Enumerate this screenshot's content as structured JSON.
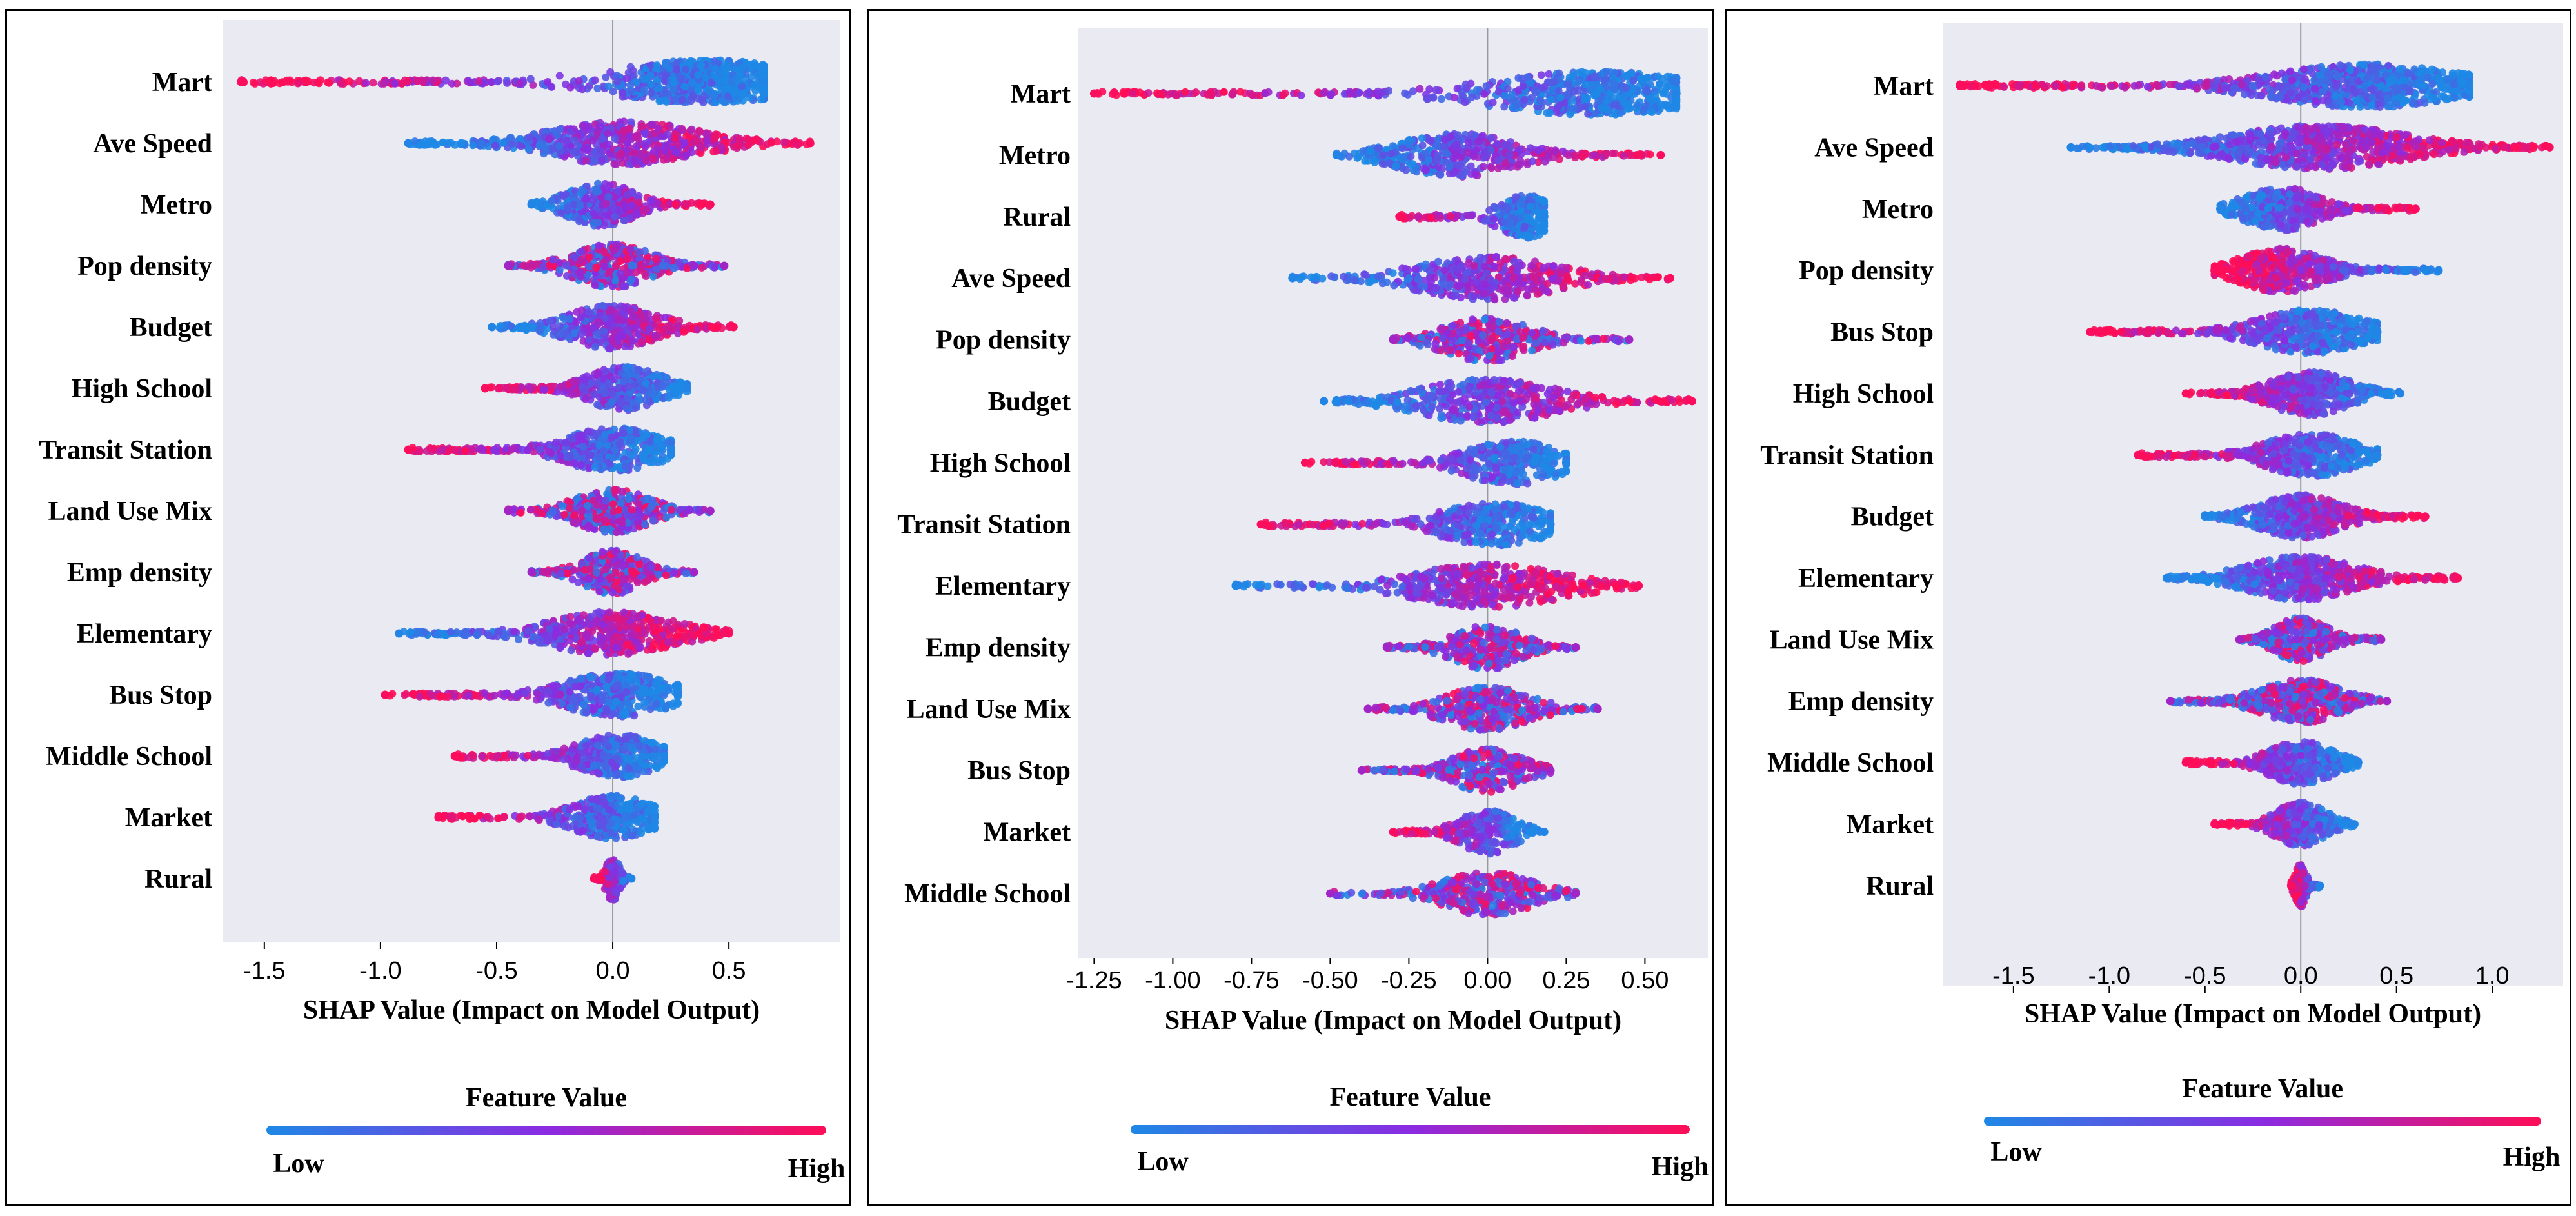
{
  "colors": {
    "plot_bg": "#eaeaf2",
    "low": "#1e88e5",
    "mid": "#8a2be2",
    "high": "#ff0d57",
    "zero_line": "#999999"
  },
  "chart_data": [
    {
      "type": "scatter",
      "subtype": "beeswarm",
      "xlabel": "SHAP Value (Impact on Model Output)",
      "xlim": [
        -1.68,
        0.98
      ],
      "xticks": [
        -1.5,
        -1.0,
        -0.5,
        0.0,
        0.5
      ],
      "xtick_labels": [
        "-1.5",
        "-1.0",
        "-0.5",
        "0.0",
        "0.5"
      ],
      "colorbar": {
        "title": "Feature Value",
        "low_label": "Low",
        "high_label": "High"
      },
      "features": [
        {
          "name": "Mart",
          "min": -1.6,
          "max": 0.65,
          "center": 0.4,
          "low_side": "right"
        },
        {
          "name": "Ave Speed",
          "min": -0.88,
          "max": 0.85,
          "center": 0.05,
          "low_side": "left"
        },
        {
          "name": "Metro",
          "min": -0.35,
          "max": 0.42,
          "center": -0.05,
          "low_side": "left"
        },
        {
          "name": "Pop density",
          "min": -0.45,
          "max": 0.48,
          "center": 0.0,
          "low_side": "mixed"
        },
        {
          "name": "Budget",
          "min": -0.52,
          "max": 0.52,
          "center": 0.0,
          "low_side": "left"
        },
        {
          "name": "High School",
          "min": -0.55,
          "max": 0.32,
          "center": 0.05,
          "low_side": "right"
        },
        {
          "name": "Transit Station",
          "min": -0.88,
          "max": 0.25,
          "center": 0.0,
          "low_side": "right"
        },
        {
          "name": "Land Use Mix",
          "min": -0.45,
          "max": 0.42,
          "center": 0.0,
          "low_side": "mixed"
        },
        {
          "name": "Emp density",
          "min": -0.35,
          "max": 0.35,
          "center": 0.0,
          "low_side": "mixed"
        },
        {
          "name": "Elementary",
          "min": -0.92,
          "max": 0.5,
          "center": 0.0,
          "low_side": "left"
        },
        {
          "name": "Bus Stop",
          "min": -0.98,
          "max": 0.28,
          "center": 0.02,
          "low_side": "right"
        },
        {
          "name": "Middle School",
          "min": -0.68,
          "max": 0.22,
          "center": 0.02,
          "low_side": "right"
        },
        {
          "name": "Market",
          "min": -0.75,
          "max": 0.18,
          "center": 0.0,
          "low_side": "right"
        },
        {
          "name": "Rural",
          "min": -0.08,
          "max": 0.08,
          "center": 0.0,
          "low_side": "right"
        }
      ]
    },
    {
      "type": "scatter",
      "subtype": "beeswarm",
      "xlabel": "SHAP Value (Impact on Model Output)",
      "xlim": [
        -1.3,
        0.7
      ],
      "xticks": [
        -1.25,
        -1.0,
        -0.75,
        -0.5,
        -0.25,
        0.0,
        0.25,
        0.5
      ],
      "xtick_labels": [
        "-1.25",
        "-1.00",
        "-0.75",
        "-0.50",
        "-0.25",
        "0.00",
        "0.25",
        "0.50"
      ],
      "colorbar": {
        "title": "Feature Value",
        "low_label": "Low",
        "high_label": "High"
      },
      "features": [
        {
          "name": "Mart",
          "min": -1.25,
          "max": 0.6,
          "center": 0.35,
          "low_side": "right"
        },
        {
          "name": "Metro",
          "min": -0.48,
          "max": 0.55,
          "center": -0.1,
          "low_side": "left"
        },
        {
          "name": "Rural",
          "min": -0.28,
          "max": 0.18,
          "center": 0.12,
          "low_side": "right"
        },
        {
          "name": "Ave Speed",
          "min": -0.62,
          "max": 0.58,
          "center": 0.0,
          "low_side": "left"
        },
        {
          "name": "Pop density",
          "min": -0.3,
          "max": 0.45,
          "center": 0.0,
          "low_side": "mixed"
        },
        {
          "name": "Budget",
          "min": -0.52,
          "max": 0.65,
          "center": 0.0,
          "low_side": "left"
        },
        {
          "name": "High School",
          "min": -0.58,
          "max": 0.25,
          "center": 0.08,
          "low_side": "right"
        },
        {
          "name": "Transit Station",
          "min": -0.72,
          "max": 0.2,
          "center": 0.02,
          "low_side": "right"
        },
        {
          "name": "Elementary",
          "min": -0.8,
          "max": 0.48,
          "center": 0.0,
          "low_side": "left"
        },
        {
          "name": "Emp density",
          "min": -0.32,
          "max": 0.28,
          "center": 0.0,
          "low_side": "mixed"
        },
        {
          "name": "Land Use Mix",
          "min": -0.38,
          "max": 0.35,
          "center": 0.0,
          "low_side": "mixed"
        },
        {
          "name": "Bus Stop",
          "min": -0.4,
          "max": 0.2,
          "center": 0.0,
          "low_side": "mixed"
        },
        {
          "name": "Market",
          "min": -0.3,
          "max": 0.18,
          "center": 0.0,
          "low_side": "right"
        },
        {
          "name": "Middle School",
          "min": -0.5,
          "max": 0.28,
          "center": 0.0,
          "low_side": "mixed"
        }
      ]
    },
    {
      "type": "scatter",
      "subtype": "beeswarm",
      "xlabel": "SHAP Value (Impact on Model Output)",
      "xlim": [
        -1.87,
        1.37
      ],
      "xticks": [
        -1.5,
        -1.0,
        -0.5,
        0.0,
        0.5,
        1.0
      ],
      "xtick_labels": [
        "-1.5",
        "-1.0",
        "-0.5",
        "0.0",
        "0.5",
        "1.0"
      ],
      "colorbar": {
        "title": "Feature Value",
        "low_label": "Low",
        "high_label": "High"
      },
      "features": [
        {
          "name": "Mart",
          "min": -1.78,
          "max": 0.88,
          "center": 0.35,
          "low_side": "right"
        },
        {
          "name": "Ave Speed",
          "min": -1.2,
          "max": 1.3,
          "center": 0.1,
          "low_side": "left"
        },
        {
          "name": "Metro",
          "min": -0.42,
          "max": 0.6,
          "center": -0.1,
          "low_side": "left"
        },
        {
          "name": "Pop density",
          "min": -0.45,
          "max": 0.72,
          "center": -0.1,
          "low_side": "right"
        },
        {
          "name": "Bus Stop",
          "min": -1.1,
          "max": 0.4,
          "center": 0.05,
          "low_side": "right"
        },
        {
          "name": "High School",
          "min": -0.6,
          "max": 0.52,
          "center": 0.05,
          "low_side": "right"
        },
        {
          "name": "Transit Station",
          "min": -0.85,
          "max": 0.4,
          "center": 0.05,
          "low_side": "right"
        },
        {
          "name": "Budget",
          "min": -0.5,
          "max": 0.65,
          "center": 0.0,
          "low_side": "left"
        },
        {
          "name": "Elementary",
          "min": -0.7,
          "max": 0.82,
          "center": 0.0,
          "low_side": "left"
        },
        {
          "name": "Land Use Mix",
          "min": -0.32,
          "max": 0.42,
          "center": 0.0,
          "low_side": "mixed"
        },
        {
          "name": "Emp density",
          "min": -0.68,
          "max": 0.45,
          "center": 0.0,
          "low_side": "mixed"
        },
        {
          "name": "Middle School",
          "min": -0.6,
          "max": 0.3,
          "center": 0.0,
          "low_side": "right"
        },
        {
          "name": "Market",
          "min": -0.45,
          "max": 0.28,
          "center": 0.0,
          "low_side": "right"
        },
        {
          "name": "Rural",
          "min": -0.05,
          "max": 0.1,
          "center": 0.0,
          "low_side": "right"
        }
      ]
    }
  ]
}
